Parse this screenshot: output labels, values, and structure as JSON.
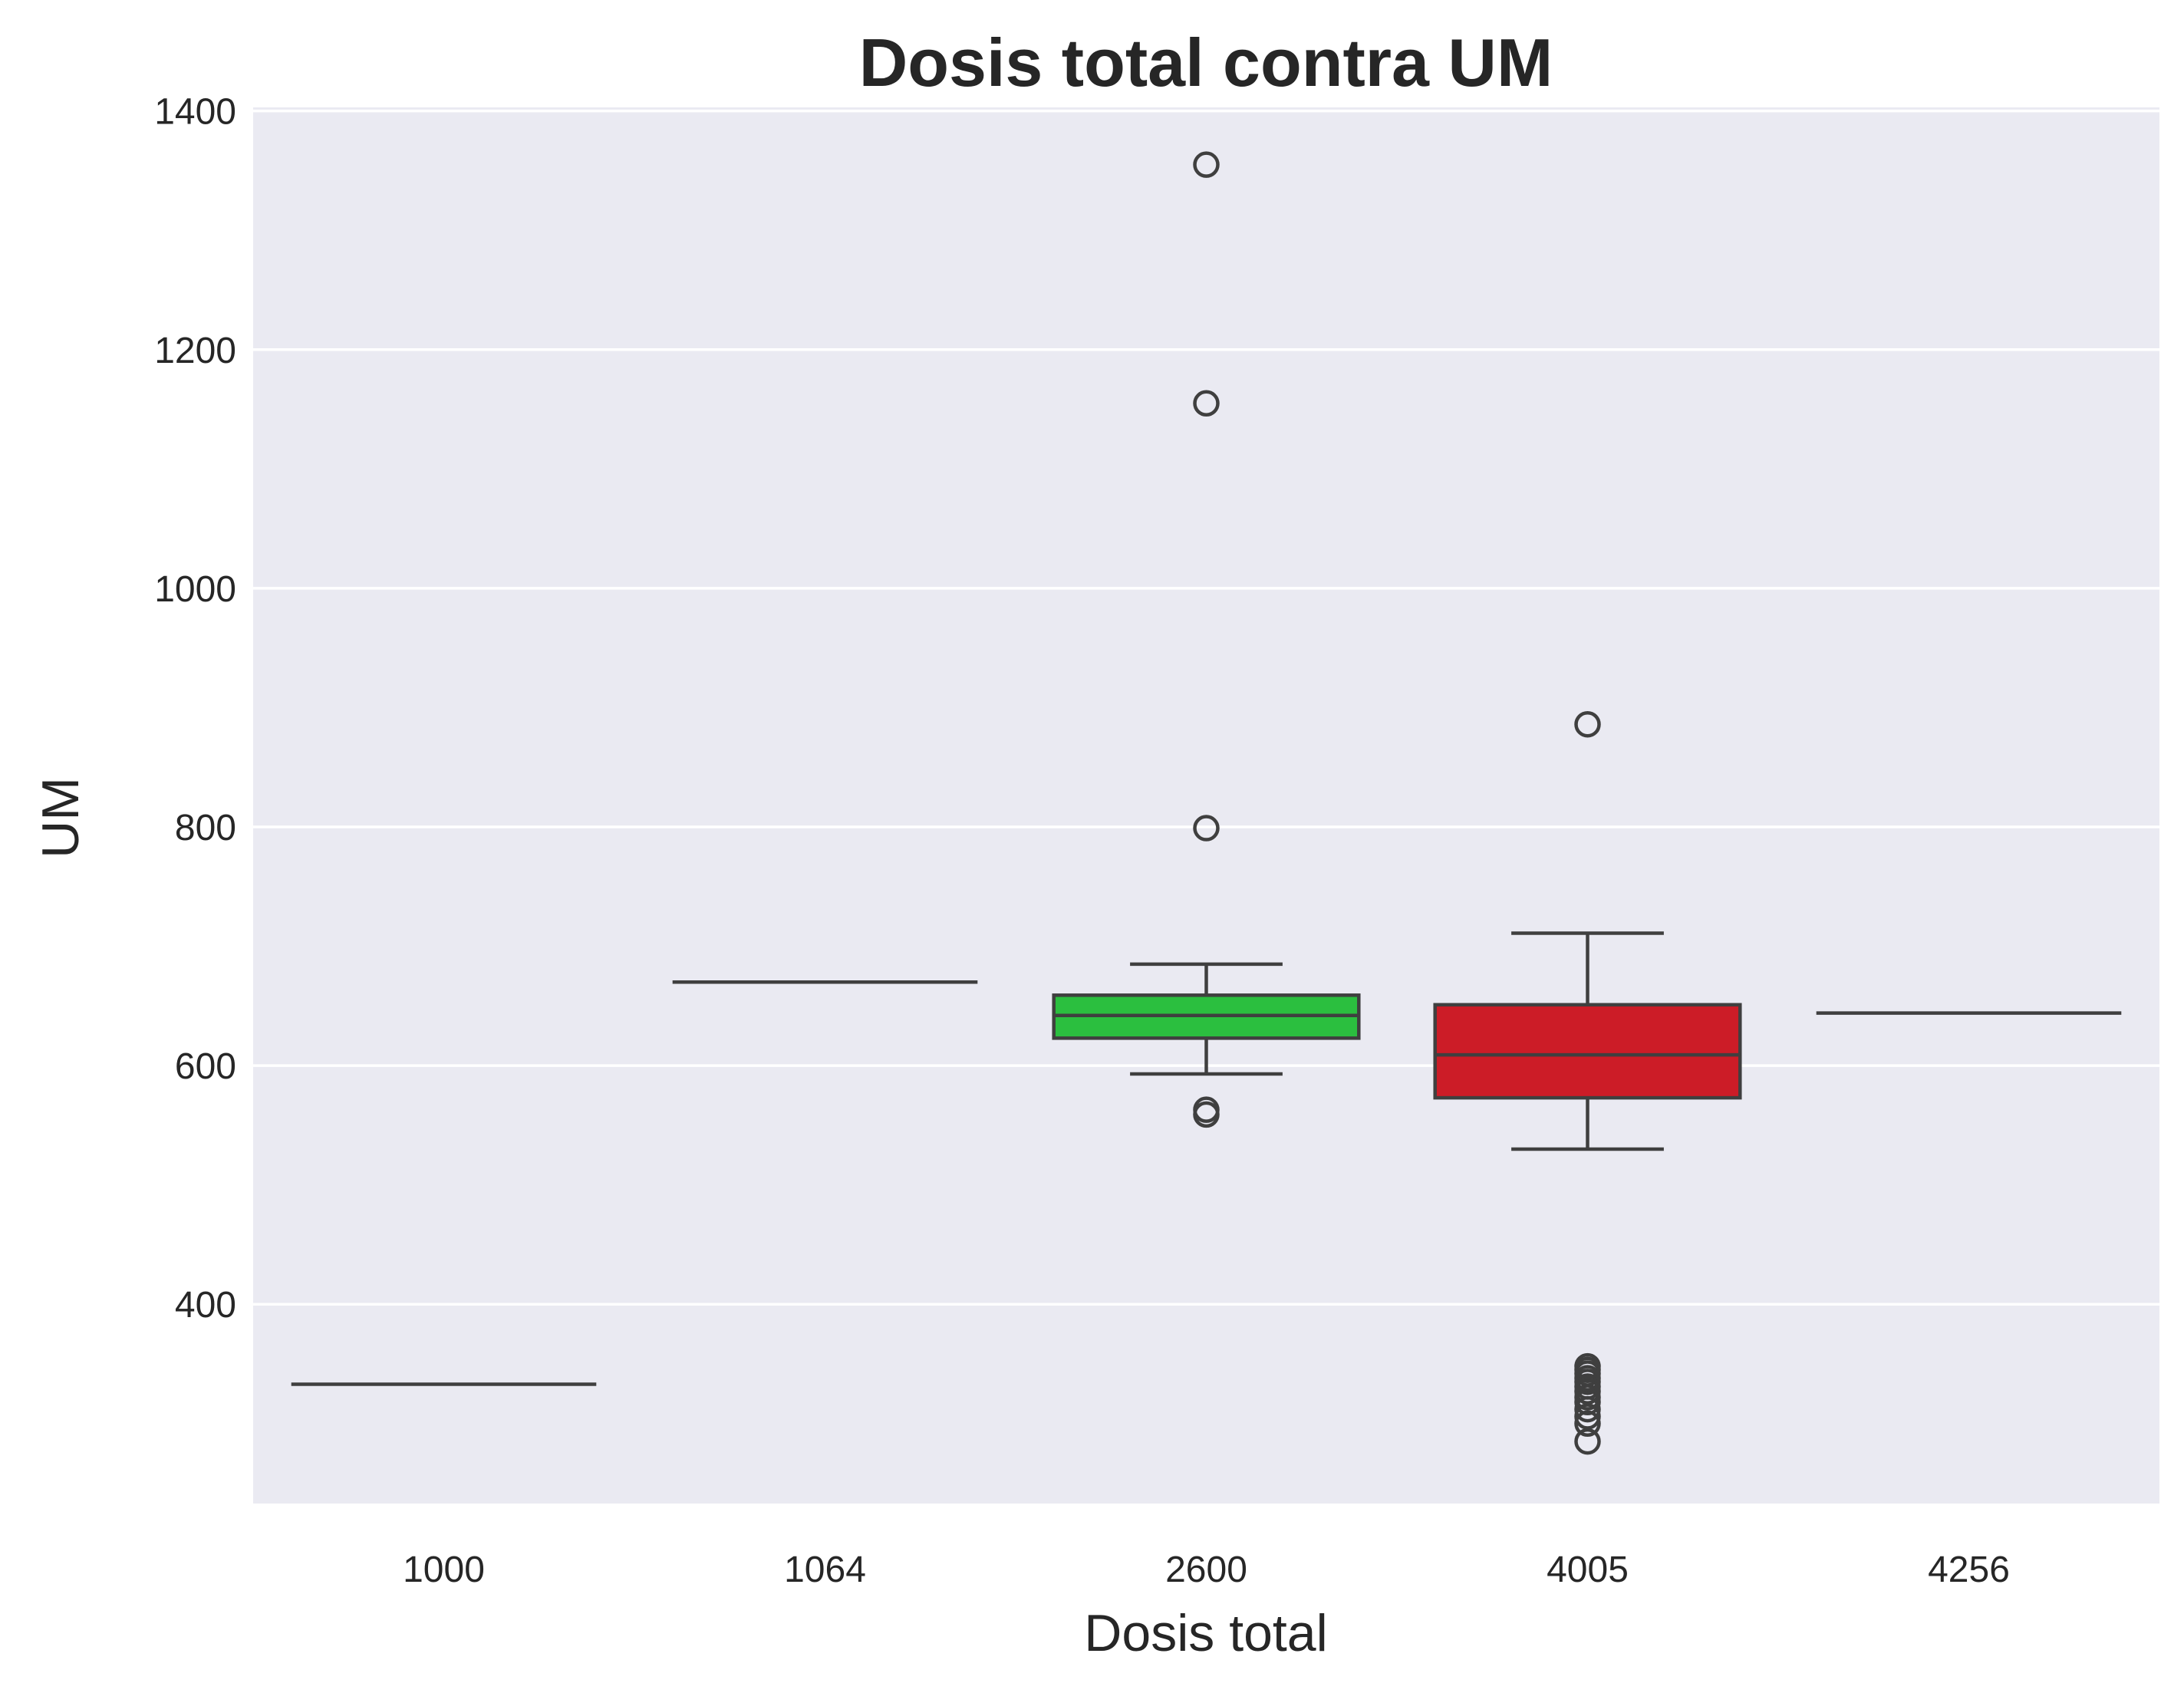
{
  "chart_data": {
    "type": "box",
    "title": "Dosis total contra UM",
    "xlabel": "Dosis total",
    "ylabel": "UM",
    "ylim": [
      233,
      1403
    ],
    "yticks": [
      400,
      600,
      800,
      1000,
      1200,
      1400
    ],
    "grid": true,
    "legend": "none",
    "categories": [
      "1000",
      "1064",
      "2600",
      "4005",
      "4256"
    ],
    "boxes": [
      {
        "category": "1000",
        "q1": 333,
        "median": 333,
        "q3": 333,
        "whisker_low": 333,
        "whisker_high": 333,
        "outliers": [],
        "color": "#4c72b0"
      },
      {
        "category": "1064",
        "q1": 670,
        "median": 670,
        "q3": 670,
        "whisker_low": 670,
        "whisker_high": 670,
        "outliers": [],
        "color": "#dd8452"
      },
      {
        "category": "2600",
        "q1": 623,
        "median": 642,
        "q3": 659,
        "whisker_low": 593,
        "whisker_high": 685,
        "outliers": [
          559,
          563,
          799,
          1155,
          1355
        ],
        "color": "#2bbf3f"
      },
      {
        "category": "4005",
        "q1": 573,
        "median": 609,
        "q3": 651,
        "whisker_low": 530,
        "whisker_high": 711,
        "outliers": [
          285,
          300,
          306,
          312,
          318,
          322,
          327,
          331,
          335,
          338,
          342,
          345,
          348,
          886
        ],
        "color": "#cc1c27"
      },
      {
        "category": "4256",
        "q1": 644,
        "median": 644,
        "q3": 644,
        "whisker_low": 644,
        "whisker_high": 644,
        "outliers": [],
        "color": "#8172b3"
      }
    ]
  },
  "colors": {
    "plot_background": "#eaeaf2",
    "grid": "#ffffff",
    "line": "#3f3f3f",
    "text": "#262626"
  }
}
